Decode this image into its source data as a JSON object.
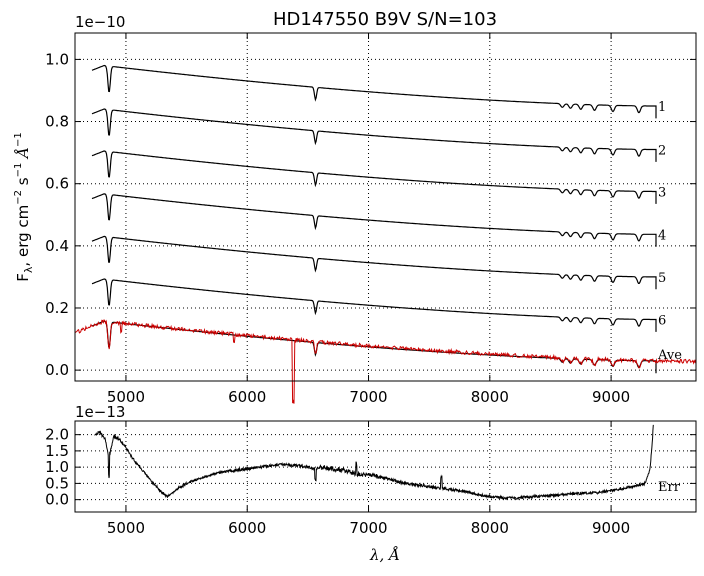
{
  "chart_data": [
    {
      "type": "line",
      "title": "HD147550  B9V  S/N=103",
      "ylabel_main": "F",
      "ylabel_sub": "λ",
      "ylabel_rest": ", erg cm",
      "ylabel_sup1": "−2",
      "ylabel_s": " s",
      "ylabel_sup2": "−1",
      "ylabel_A": " Å",
      "ylabel_sup3": "−1",
      "offset_text": "1e−10",
      "xlim": [
        4580,
        9700
      ],
      "ylim": [
        -0.035,
        1.085
      ],
      "xticks": [
        5000,
        6000,
        7000,
        8000,
        9000
      ],
      "yticks": [
        0.0,
        0.2,
        0.4,
        0.6,
        0.8,
        1.0
      ],
      "ytick_labels": [
        "0.0",
        "0.2",
        "0.4",
        "0.6",
        "0.8",
        "1.0"
      ],
      "grid": true,
      "series": [
        {
          "name": "1",
          "x_start": 4720,
          "x_end": 9370,
          "y_start": 0.985,
          "y_end": 0.85,
          "color": "#000000"
        },
        {
          "name": "2",
          "x_start": 4720,
          "x_end": 9370,
          "y_start": 0.845,
          "y_end": 0.71,
          "color": "#000000"
        },
        {
          "name": "3",
          "x_start": 4720,
          "x_end": 9370,
          "y_start": 0.71,
          "y_end": 0.575,
          "color": "#000000"
        },
        {
          "name": "4",
          "x_start": 4720,
          "x_end": 9370,
          "y_start": 0.572,
          "y_end": 0.437,
          "color": "#000000"
        },
        {
          "name": "5",
          "x_start": 4720,
          "x_end": 9370,
          "y_start": 0.435,
          "y_end": 0.3,
          "color": "#000000"
        },
        {
          "name": "6",
          "x_start": 4720,
          "x_end": 9370,
          "y_start": 0.298,
          "y_end": 0.163,
          "color": "#000000"
        },
        {
          "name": "Ave",
          "x_start": 4720,
          "x_end": 9370,
          "y_start": 0.162,
          "y_end": 0.03,
          "color": "#000000"
        },
        {
          "name": "",
          "x_start": 4580,
          "x_end": 9700,
          "y_start": 0.168,
          "y_end": 0.028,
          "color": "#cc0000"
        }
      ],
      "absorption_lines": [
        {
          "x": 4861,
          "depth": 0.085
        },
        {
          "x": 6563,
          "depth": 0.04
        },
        {
          "x": 8598,
          "depth": 0.012
        },
        {
          "x": 8665,
          "depth": 0.014
        },
        {
          "x": 8750,
          "depth": 0.016
        },
        {
          "x": 8863,
          "depth": 0.018
        },
        {
          "x": 9015,
          "depth": 0.02
        },
        {
          "x": 9229,
          "depth": 0.022
        }
      ],
      "series_labels": [
        "1",
        "2",
        "3",
        "4",
        "5",
        "6",
        "Ave"
      ]
    },
    {
      "type": "line",
      "name": "Err",
      "offset_text": "1e−13",
      "xlabel_main": "λ, Å",
      "xlim": [
        4580,
        9700
      ],
      "ylim": [
        -0.38,
        2.42
      ],
      "xticks": [
        5000,
        6000,
        7000,
        8000,
        9000
      ],
      "yticks": [
        0.0,
        0.5,
        1.0,
        1.5,
        2.0
      ],
      "ytick_labels": [
        "0.0",
        "0.5",
        "1.0",
        "1.5",
        "2.0"
      ],
      "grid": true,
      "label": "Err",
      "x": [
        4740,
        4780,
        4830,
        4860,
        4900,
        4950,
        5000,
        5050,
        5100,
        5150,
        5200,
        5250,
        5300,
        5340,
        5380,
        5430,
        5500,
        5600,
        5700,
        5800,
        5900,
        6000,
        6100,
        6200,
        6300,
        6400,
        6500,
        6563,
        6600,
        6700,
        6800,
        6900,
        7000,
        7100,
        7200,
        7300,
        7400,
        7500,
        7600,
        7700,
        7800,
        7900,
        8000,
        8100,
        8200,
        8300,
        8400,
        8500,
        8600,
        8700,
        8800,
        8900,
        9000,
        9100,
        9200,
        9280,
        9320,
        9340,
        9350
      ],
      "y": [
        1.95,
        2.1,
        1.85,
        1.3,
        1.95,
        1.85,
        1.6,
        1.3,
        1.05,
        0.85,
        0.6,
        0.42,
        0.2,
        0.1,
        0.2,
        0.35,
        0.5,
        0.65,
        0.75,
        0.85,
        0.9,
        0.95,
        1.0,
        1.05,
        1.08,
        1.05,
        1.0,
        0.95,
        1.0,
        0.95,
        0.9,
        0.8,
        0.75,
        0.7,
        0.6,
        0.5,
        0.45,
        0.4,
        0.35,
        0.3,
        0.25,
        0.15,
        0.1,
        0.06,
        0.05,
        0.08,
        0.1,
        0.12,
        0.15,
        0.18,
        0.2,
        0.22,
        0.28,
        0.35,
        0.42,
        0.5,
        0.9,
        1.8,
        2.4
      ]
    }
  ]
}
